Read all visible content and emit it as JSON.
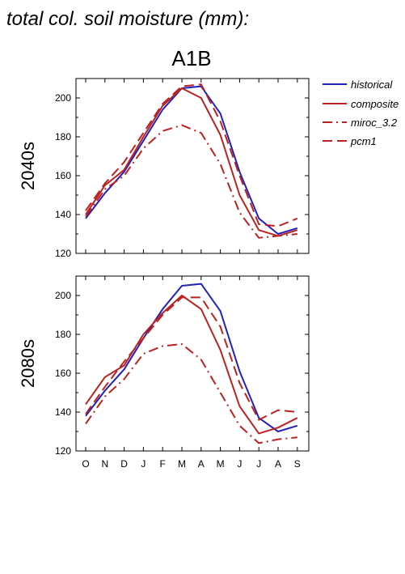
{
  "page_title": "total col. soil moisture (mm):",
  "scenario_title": "A1B",
  "colors": {
    "historical": "#2222bb",
    "models": "#bb2222"
  },
  "legend": [
    {
      "label": "historical",
      "dash": "solid",
      "color": "#2222bb"
    },
    {
      "label": "composite",
      "dash": "solid",
      "color": "#bb2222"
    },
    {
      "label": "miroc_3.2",
      "dash": "dashdot",
      "color": "#bb2222"
    },
    {
      "label": "pcm1",
      "dash": "dash",
      "color": "#bb2222"
    }
  ],
  "chart_data": [
    {
      "type": "line",
      "title": "2040s",
      "categories": [
        "O",
        "N",
        "D",
        "J",
        "F",
        "M",
        "A",
        "M",
        "J",
        "J",
        "A",
        "S"
      ],
      "ylim": [
        120,
        210
      ],
      "yticks": [
        120,
        140,
        160,
        180,
        200
      ],
      "series": [
        {
          "name": "historical",
          "values": [
            138,
            151,
            162,
            178,
            194,
            205,
            206,
            192,
            162,
            138,
            130,
            133
          ]
        },
        {
          "name": "composite",
          "values": [
            140,
            155,
            163,
            180,
            196,
            205,
            200,
            181,
            150,
            132,
            129,
            132
          ]
        },
        {
          "name": "miroc_3.2",
          "values": [
            139,
            153,
            160,
            174,
            183,
            186,
            182,
            166,
            141,
            128,
            129,
            130
          ]
        },
        {
          "name": "pcm1",
          "values": [
            142,
            156,
            167,
            182,
            197,
            206,
            207,
            188,
            160,
            135,
            134,
            138
          ]
        }
      ]
    },
    {
      "type": "line",
      "title": "2080s",
      "categories": [
        "O",
        "N",
        "D",
        "J",
        "F",
        "M",
        "A",
        "M",
        "J",
        "J",
        "A",
        "S"
      ],
      "ylim": [
        120,
        210
      ],
      "yticks": [
        120,
        140,
        160,
        180,
        200
      ],
      "series": [
        {
          "name": "historical",
          "values": [
            138,
            151,
            162,
            178,
            193,
            205,
            206,
            192,
            161,
            137,
            130,
            133
          ]
        },
        {
          "name": "composite",
          "values": [
            144,
            158,
            164,
            180,
            191,
            200,
            193,
            172,
            143,
            129,
            132,
            137
          ]
        },
        {
          "name": "miroc_3.2",
          "values": [
            134,
            148,
            157,
            170,
            174,
            175,
            167,
            150,
            133,
            124,
            126,
            127
          ]
        },
        {
          "name": "pcm1",
          "values": [
            139,
            153,
            166,
            178,
            190,
            199,
            199,
            184,
            155,
            136,
            141,
            140
          ]
        }
      ]
    }
  ]
}
